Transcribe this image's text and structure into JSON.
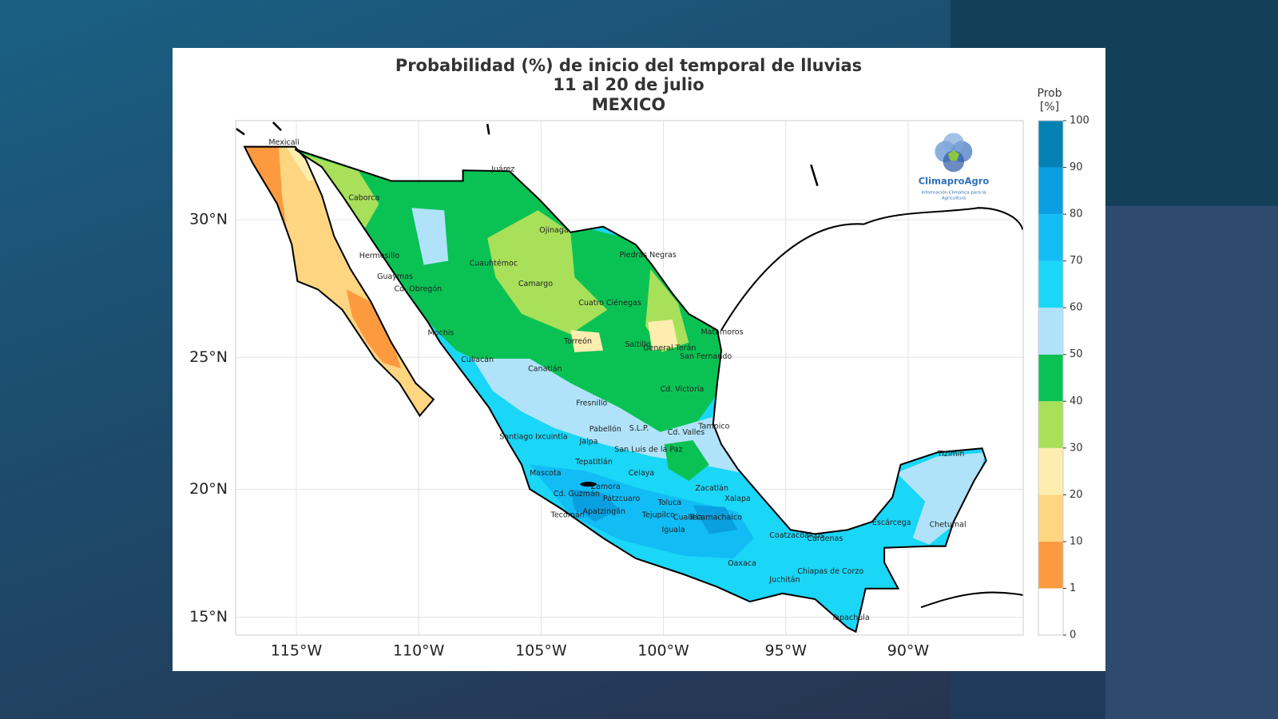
{
  "title": [
    "Probabilidad (%) de inicio del temporal de lluvias",
    "11 al 20 de julio",
    "MEXICO"
  ],
  "map": {
    "lonlim": [
      -117.48,
      -85.3
    ],
    "latlim": [
      14.29,
      33.46
    ],
    "lon_ticks": [
      {
        "value": -115,
        "label": "115°W"
      },
      {
        "value": -110,
        "label": "110°W"
      },
      {
        "value": -105,
        "label": "105°W"
      },
      {
        "value": -100,
        "label": "100°W"
      },
      {
        "value": -95,
        "label": "95°W"
      },
      {
        "value": -90,
        "label": "90°W"
      }
    ],
    "lat_ticks": [
      {
        "value": 15,
        "label": "15°N"
      },
      {
        "value": 20,
        "label": "20°N"
      },
      {
        "value": 25,
        "label": "25°N"
      },
      {
        "value": 30,
        "label": "30°N"
      }
    ],
    "grid": true
  },
  "colorbar": {
    "title": [
      "Prob",
      "[%]"
    ],
    "bounds": [
      0,
      1,
      10,
      20,
      30,
      40,
      50,
      60,
      70,
      80,
      90,
      100
    ],
    "colors": [
      "#ffffff",
      "#fd9a3f",
      "#fed580",
      "#fdeeb0",
      "#a8e05a",
      "#0ac254",
      "#b0e3f9",
      "#1ad6f7",
      "#12bcf5",
      "#0a9fe0",
      "#0582b4"
    ]
  },
  "cities": [
    {
      "name": "Mexicali",
      "lon": -116.13,
      "lat": 32.71
    },
    {
      "name": "Juárez",
      "lon": -107.03,
      "lat": 31.77
    },
    {
      "name": "Caborca",
      "lon": -112.87,
      "lat": 30.77
    },
    {
      "name": "Ojinaga",
      "lon": -105.07,
      "lat": 29.62
    },
    {
      "name": "Hermosillo",
      "lon": -112.43,
      "lat": 28.7
    },
    {
      "name": "Piedras Negras",
      "lon": -101.8,
      "lat": 28.73
    },
    {
      "name": "Cuauhtémoc",
      "lon": -107.93,
      "lat": 28.43
    },
    {
      "name": "Guaymas",
      "lon": -111.7,
      "lat": 27.96
    },
    {
      "name": "Camargo",
      "lon": -105.93,
      "lat": 27.69
    },
    {
      "name": "Cd. Obregón",
      "lon": -111.0,
      "lat": 27.51
    },
    {
      "name": "Cuatro Ciénegas",
      "lon": -103.47,
      "lat": 27.0
    },
    {
      "name": "Matamoros",
      "lon": -98.47,
      "lat": 25.92
    },
    {
      "name": "Mochis",
      "lon": -109.63,
      "lat": 25.89
    },
    {
      "name": "Torreón",
      "lon": -104.07,
      "lat": 25.59
    },
    {
      "name": "Saltillo",
      "lon": -101.57,
      "lat": 25.47
    },
    {
      "name": "General Terán",
      "lon": -100.83,
      "lat": 25.33
    },
    {
      "name": "San Fernando",
      "lon": -99.33,
      "lat": 25.03
    },
    {
      "name": "Culiacán",
      "lon": -108.27,
      "lat": 24.91
    },
    {
      "name": "Canatlán",
      "lon": -105.53,
      "lat": 24.57
    },
    {
      "name": "Cd. Victoria",
      "lon": -100.13,
      "lat": 23.8
    },
    {
      "name": "Fresnillo",
      "lon": -103.57,
      "lat": 23.27
    },
    {
      "name": "Tampico",
      "lon": -98.57,
      "lat": 22.4
    },
    {
      "name": "Pabellón",
      "lon": -103.03,
      "lat": 22.29
    },
    {
      "name": "S.L.P.",
      "lon": -101.4,
      "lat": 22.33
    },
    {
      "name": "Cd. Valles",
      "lon": -99.83,
      "lat": 22.17
    },
    {
      "name": "Santiago Ixcuintla",
      "lon": -106.7,
      "lat": 22.0
    },
    {
      "name": "Jalpa",
      "lon": -103.43,
      "lat": 21.82
    },
    {
      "name": "San Luis de la Paz",
      "lon": -102.0,
      "lat": 21.52
    },
    {
      "name": "Tepatitlán",
      "lon": -103.6,
      "lat": 21.04
    },
    {
      "name": "Tizimín",
      "lon": -88.8,
      "lat": 21.35
    },
    {
      "name": "Celaya",
      "lon": -101.43,
      "lat": 20.61
    },
    {
      "name": "Mascota",
      "lon": -105.47,
      "lat": 20.61
    },
    {
      "name": "Zamora",
      "lon": -102.97,
      "lat": 20.09
    },
    {
      "name": "Zacatlán",
      "lon": -98.7,
      "lat": 20.03
    },
    {
      "name": "Cd. Guzmán",
      "lon": -104.5,
      "lat": 19.82
    },
    {
      "name": "Xalapa",
      "lon": -97.5,
      "lat": 19.63
    },
    {
      "name": "Pátzcuaro",
      "lon": -102.47,
      "lat": 19.63
    },
    {
      "name": "Toluca",
      "lon": -100.23,
      "lat": 19.47
    },
    {
      "name": "Apatzingán",
      "lon": -103.3,
      "lat": 19.13
    },
    {
      "name": "Tecomán",
      "lon": -104.6,
      "lat": 19.0
    },
    {
      "name": "Tejupilco",
      "lon": -100.87,
      "lat": 19.0
    },
    {
      "name": "Cuautla",
      "lon": -99.6,
      "lat": 18.91
    },
    {
      "name": "Tecamachalco",
      "lon": -98.97,
      "lat": 18.91
    },
    {
      "name": "Escárcega",
      "lon": -91.47,
      "lat": 18.7
    },
    {
      "name": "Chetumal",
      "lon": -89.13,
      "lat": 18.62
    },
    {
      "name": "Iguala",
      "lon": -100.07,
      "lat": 18.42
    },
    {
      "name": "Coatzacoalcos",
      "lon": -95.67,
      "lat": 18.2
    },
    {
      "name": "Cárdenas",
      "lon": -94.13,
      "lat": 18.08
    },
    {
      "name": "Oaxaca",
      "lon": -97.37,
      "lat": 17.12
    },
    {
      "name": "Chiapas de Corzo",
      "lon": -94.53,
      "lat": 16.8
    },
    {
      "name": "Juchitán",
      "lon": -95.67,
      "lat": 16.47
    },
    {
      "name": "Tapachula",
      "lon": -93.13,
      "lat": 14.97
    }
  ],
  "logo": {
    "name": "ClimaproAgro",
    "tagline": [
      "Información Climática para la",
      "Agricultura"
    ]
  }
}
